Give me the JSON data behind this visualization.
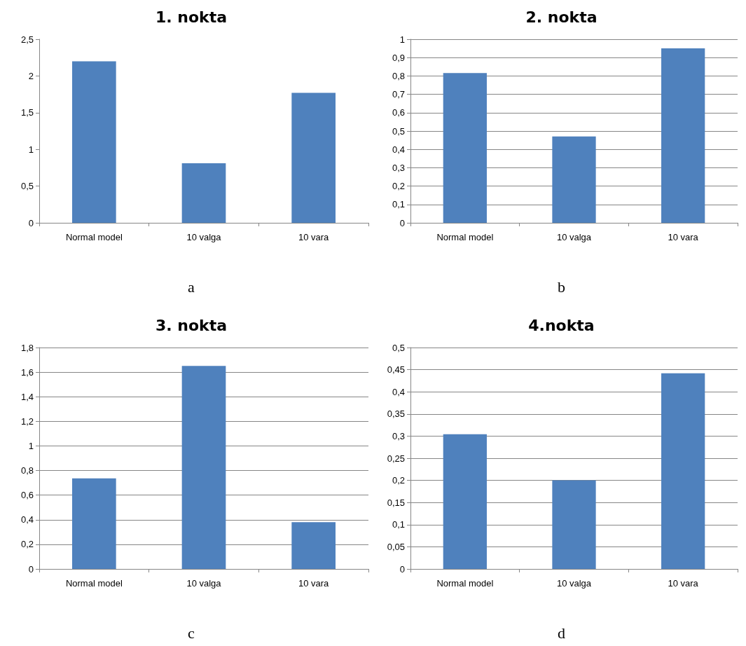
{
  "chart_data": [
    {
      "type": "bar",
      "title": "1. nokta",
      "categories": [
        "Normal model",
        "10 valga",
        "10 vara"
      ],
      "values": [
        2.2,
        0.81,
        1.77
      ],
      "color": "#4f81bd",
      "ylim": [
        0,
        2.5
      ],
      "yticks": [
        0,
        {
          "value": 0.5,
          "label": "0,5"
        },
        1,
        {
          "value": 1.5,
          "label": "1,5"
        },
        2,
        {
          "value": 2.5,
          "label": "2,5"
        }
      ],
      "grid": false,
      "annotations": [
        "a"
      ]
    },
    {
      "type": "bar",
      "title": "2. nokta",
      "categories": [
        "Normal model",
        "10 valga",
        "10 vara"
      ],
      "values": [
        0.816,
        0.47,
        0.95
      ],
      "color": "#4f81bd",
      "ylim": [
        0,
        1
      ],
      "yticks": [
        0,
        {
          "value": 0.1,
          "label": "0,1"
        },
        {
          "value": 0.2,
          "label": "0,2"
        },
        {
          "value": 0.3,
          "label": "0,3"
        },
        {
          "value": 0.4,
          "label": "0,4"
        },
        {
          "value": 0.5,
          "label": "0,5"
        },
        {
          "value": 0.6,
          "label": "0,6"
        },
        {
          "value": 0.7,
          "label": "0,7"
        },
        {
          "value": 0.8,
          "label": "0,8"
        },
        {
          "value": 0.9,
          "label": "0,9"
        },
        1
      ],
      "grid": true,
      "annotations": [
        "b"
      ]
    },
    {
      "type": "bar",
      "title": "3. nokta",
      "categories": [
        "Normal model",
        "10 valga",
        "10 vara"
      ],
      "values": [
        0.736,
        1.65,
        0.38
      ],
      "color": "#4f81bd",
      "ylim": [
        0,
        1.8
      ],
      "yticks": [
        0,
        {
          "value": 0.2,
          "label": "0,2"
        },
        {
          "value": 0.4,
          "label": "0,4"
        },
        {
          "value": 0.6,
          "label": "0,6"
        },
        {
          "value": 0.8,
          "label": "0,8"
        },
        1,
        {
          "value": 1.2,
          "label": "1,2"
        },
        {
          "value": 1.4,
          "label": "1,4"
        },
        {
          "value": 1.6,
          "label": "1,6"
        },
        {
          "value": 1.8,
          "label": "1,8"
        }
      ],
      "grid": true,
      "annotations": [
        "c"
      ]
    },
    {
      "type": "bar",
      "title": "4.nokta",
      "categories": [
        "Normal model",
        "10 valga",
        "10 vara"
      ],
      "values": [
        0.304,
        0.2,
        0.442
      ],
      "color": "#4f81bd",
      "ylim": [
        0,
        0.5
      ],
      "yticks": [
        0,
        {
          "value": 0.05,
          "label": "0,05"
        },
        {
          "value": 0.1,
          "label": "0,1"
        },
        {
          "value": 0.15,
          "label": "0,15"
        },
        {
          "value": 0.2,
          "label": "0,2"
        },
        {
          "value": 0.25,
          "label": "0,25"
        },
        {
          "value": 0.3,
          "label": "0,3"
        },
        {
          "value": 0.35,
          "label": "0,35"
        },
        {
          "value": 0.4,
          "label": "0,4"
        },
        {
          "value": 0.45,
          "label": "0,45"
        },
        {
          "value": 0.5,
          "label": "0,5"
        }
      ],
      "grid": true,
      "annotations": [
        "d"
      ]
    }
  ]
}
